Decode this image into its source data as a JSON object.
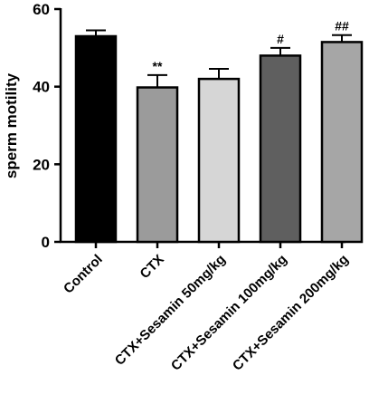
{
  "chart_data": {
    "type": "bar",
    "ylabel": "sperm motility",
    "xlabel": "",
    "ylim": [
      0,
      60
    ],
    "yticks": [
      0,
      20,
      40,
      60
    ],
    "categories": [
      "Control",
      "CTX",
      "CTX+Sesamin 50mg/kg",
      "CTX+Sesamin 100mg/kg",
      "CTX+Sesamin 200mg/kg"
    ],
    "values": [
      53.0,
      39.8,
      42.0,
      48.0,
      51.5
    ],
    "errors": [
      1.5,
      3.2,
      2.6,
      2.0,
      1.8
    ],
    "annotations": [
      "",
      "**",
      "",
      "#",
      "##"
    ],
    "colors": [
      "#000000",
      "#9b9b9b",
      "#d6d6d6",
      "#5f5f5f",
      "#a6a6a6"
    ],
    "grid": false,
    "legend": "none"
  }
}
